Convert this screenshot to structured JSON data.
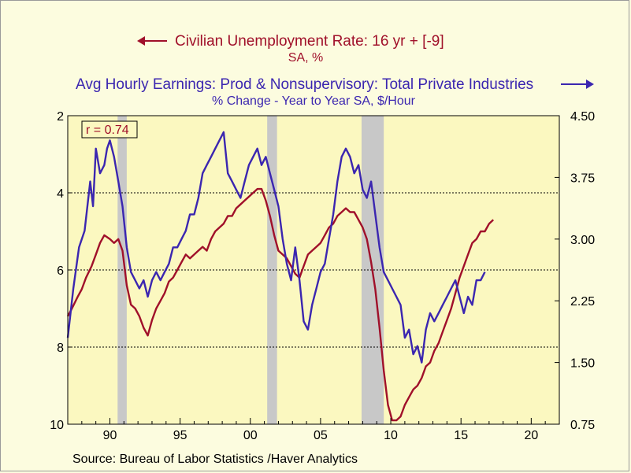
{
  "chart_data": {
    "type": "line",
    "legend": {
      "series1_title": "Civilian Unemployment Rate: 16 yr + [-9]",
      "series1_subtitle": "SA, %",
      "series2_title": "Avg Hourly Earnings: Prod & Nonsupervisory: Total Private Industries",
      "series2_subtitle": "% Change - Year to Year    SA, $/Hour"
    },
    "annotation": "r = 0.74",
    "source": "Source:  Bureau of Labor Statistics /Haver Analytics",
    "colors": {
      "unemployment": "#a0102a",
      "earnings": "#3b26b0",
      "plot_bg": "#fbf8c0",
      "recession": "#c8c8c8"
    },
    "x_range": [
      1987,
      2022
    ],
    "x_ticks": [
      {
        "v": 1990,
        "label": "90"
      },
      {
        "v": 1995,
        "label": "95"
      },
      {
        "v": 2000,
        "label": "00"
      },
      {
        "v": 2005,
        "label": "05"
      },
      {
        "v": 2010,
        "label": "10"
      },
      {
        "v": 2015,
        "label": "15"
      },
      {
        "v": 2020,
        "label": "20"
      }
    ],
    "left_axis": {
      "range": [
        2,
        10
      ],
      "inverted": true,
      "ticks": [
        "2",
        "4",
        "6",
        "8",
        "10"
      ]
    },
    "right_axis": {
      "range": [
        0.75,
        4.5
      ],
      "ticks": [
        "4.50",
        "3.75",
        "3.00",
        "2.25",
        "1.50",
        "0.75"
      ]
    },
    "gridlines_left": [
      4,
      6,
      8
    ],
    "recessions": [
      [
        1990.55,
        1991.2
      ],
      [
        2001.2,
        2001.9
      ],
      [
        2007.92,
        2009.5
      ]
    ],
    "series": [
      {
        "name": "Civilian Unemployment Rate: 16 yr + [-9]",
        "axis": "left",
        "x": [
          1987.0,
          1987.3,
          1987.7,
          1988.0,
          1988.3,
          1988.7,
          1989.0,
          1989.3,
          1989.6,
          1990.0,
          1990.3,
          1990.6,
          1990.9,
          1991.2,
          1991.5,
          1991.8,
          1992.1,
          1992.4,
          1992.7,
          1993.0,
          1993.3,
          1993.6,
          1993.9,
          1994.2,
          1994.5,
          1994.8,
          1995.1,
          1995.4,
          1995.7,
          1996.0,
          1996.3,
          1996.6,
          1996.9,
          1997.2,
          1997.5,
          1997.8,
          1998.1,
          1998.4,
          1998.7,
          1999.0,
          1999.3,
          1999.6,
          1999.9,
          2000.2,
          2000.5,
          2000.8,
          2001.1,
          2001.4,
          2001.7,
          2002.0,
          2002.3,
          2002.6,
          2002.9,
          2003.2,
          2003.5,
          2003.8,
          2004.1,
          2004.4,
          2004.7,
          2005.0,
          2005.3,
          2005.6,
          2005.9,
          2006.2,
          2006.5,
          2006.8,
          2007.1,
          2007.4,
          2007.7,
          2008.0,
          2008.3,
          2008.6,
          2008.9,
          2009.2,
          2009.5,
          2009.8,
          2010.1,
          2010.4,
          2010.7,
          2011.0,
          2011.3,
          2011.6,
          2011.9,
          2012.2,
          2012.5,
          2012.8,
          2013.1,
          2013.4,
          2013.7,
          2014.0,
          2014.3,
          2014.6,
          2014.9,
          2015.2,
          2015.5,
          2015.8,
          2016.1,
          2016.4,
          2016.7,
          2017.0,
          2017.3
        ],
        "values": [
          7.2,
          7.0,
          6.7,
          6.5,
          6.2,
          5.9,
          5.6,
          5.3,
          5.1,
          5.2,
          5.3,
          5.2,
          5.5,
          6.4,
          6.9,
          7.0,
          7.2,
          7.5,
          7.7,
          7.3,
          7.0,
          6.8,
          6.6,
          6.3,
          6.2,
          6.0,
          5.8,
          5.6,
          5.7,
          5.6,
          5.5,
          5.4,
          5.5,
          5.2,
          5.0,
          4.9,
          4.8,
          4.6,
          4.6,
          4.4,
          4.3,
          4.2,
          4.1,
          4.0,
          3.9,
          3.9,
          4.2,
          4.6,
          5.1,
          5.5,
          5.6,
          5.7,
          5.9,
          6.1,
          6.2,
          5.9,
          5.6,
          5.5,
          5.4,
          5.3,
          5.1,
          4.9,
          4.8,
          4.6,
          4.5,
          4.4,
          4.5,
          4.5,
          4.7,
          4.9,
          5.2,
          5.8,
          6.5,
          7.5,
          8.6,
          9.5,
          9.9,
          9.9,
          9.8,
          9.5,
          9.3,
          9.1,
          9.0,
          8.8,
          8.5,
          8.4,
          8.1,
          7.9,
          7.6,
          7.3,
          7.0,
          6.6,
          6.2,
          5.9,
          5.6,
          5.3,
          5.2,
          5.0,
          5.0,
          4.8,
          4.7
        ]
      },
      {
        "name": "Avg Hourly Earnings: Prod & Nonsupervisory: Total Private Industries",
        "axis": "right",
        "x": [
          1987.0,
          1987.4,
          1987.8,
          1988.2,
          1988.6,
          1988.8,
          1989.0,
          1989.3,
          1989.6,
          1989.8,
          1990.0,
          1990.3,
          1990.6,
          1990.9,
          1991.2,
          1991.5,
          1991.8,
          1992.1,
          1992.4,
          1992.7,
          1993.0,
          1993.3,
          1993.6,
          1993.9,
          1994.2,
          1994.5,
          1994.8,
          1995.1,
          1995.4,
          1995.7,
          1996.0,
          1996.3,
          1996.6,
          1996.9,
          1997.2,
          1997.5,
          1997.8,
          1998.1,
          1998.4,
          1998.7,
          1999.0,
          1999.3,
          1999.6,
          1999.9,
          2000.2,
          2000.5,
          2000.8,
          2001.1,
          2001.4,
          2001.7,
          2002.0,
          2002.3,
          2002.6,
          2002.9,
          2003.2,
          2003.5,
          2003.8,
          2004.1,
          2004.4,
          2004.7,
          2005.0,
          2005.3,
          2005.6,
          2005.9,
          2006.2,
          2006.5,
          2006.8,
          2007.1,
          2007.4,
          2007.7,
          2008.0,
          2008.3,
          2008.6,
          2008.9,
          2009.2,
          2009.5,
          2009.8,
          2010.1,
          2010.4,
          2010.7,
          2011.0,
          2011.3,
          2011.6,
          2011.9,
          2012.2,
          2012.5,
          2012.8,
          2013.1,
          2013.4,
          2013.7,
          2014.0,
          2014.3,
          2014.6,
          2014.9,
          2015.2,
          2015.5,
          2015.8,
          2016.1,
          2016.4,
          2016.7
        ],
        "values": [
          1.8,
          2.4,
          2.9,
          3.1,
          3.7,
          3.4,
          4.1,
          3.8,
          3.9,
          4.1,
          4.2,
          4.0,
          3.7,
          3.4,
          2.9,
          2.6,
          2.5,
          2.4,
          2.5,
          2.3,
          2.5,
          2.6,
          2.5,
          2.6,
          2.7,
          2.9,
          2.9,
          3.0,
          3.1,
          3.3,
          3.3,
          3.5,
          3.8,
          3.9,
          4.0,
          4.1,
          4.2,
          4.3,
          3.8,
          3.7,
          3.6,
          3.5,
          3.7,
          3.9,
          4.0,
          4.1,
          3.9,
          4.0,
          3.8,
          3.6,
          3.4,
          3.0,
          2.7,
          2.5,
          2.9,
          2.5,
          2.0,
          1.9,
          2.2,
          2.4,
          2.6,
          2.7,
          3.0,
          3.3,
          3.7,
          4.0,
          4.1,
          4.0,
          3.8,
          3.9,
          3.6,
          3.5,
          3.7,
          3.3,
          2.9,
          2.6,
          2.5,
          2.4,
          2.3,
          2.2,
          1.8,
          1.9,
          1.6,
          1.7,
          1.5,
          1.9,
          2.1,
          2.0,
          2.1,
          2.2,
          2.3,
          2.4,
          2.5,
          2.3,
          2.1,
          2.3,
          2.2,
          2.5,
          2.5,
          2.6
        ]
      }
    ]
  }
}
